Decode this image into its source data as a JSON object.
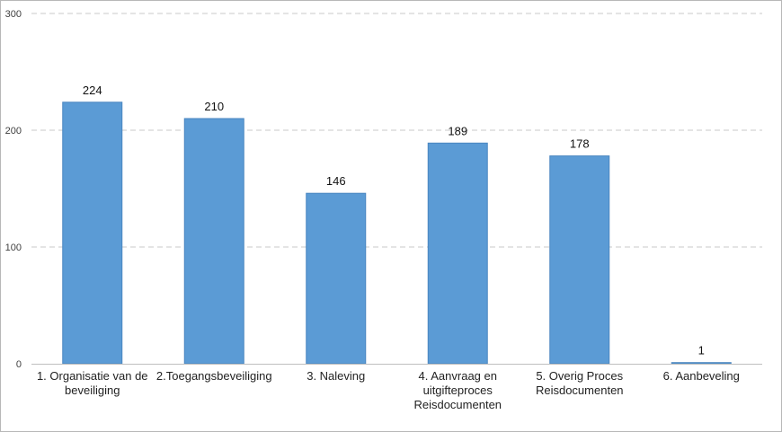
{
  "chart_data": {
    "type": "bar",
    "categories": [
      [
        "1. Organisatie van de",
        "beveiliging"
      ],
      [
        "2.Toegangsbeveiliging"
      ],
      [
        "3. Naleving"
      ],
      [
        "4. Aanvraag en",
        "uitgifteproces",
        "Reisdocumenten"
      ],
      [
        "5. Overig Proces",
        "Reisdocumenten"
      ],
      [
        "6. Aanbeveling"
      ]
    ],
    "values": [
      224,
      210,
      146,
      189,
      178,
      1
    ],
    "data_labels": [
      "224",
      "210",
      "146",
      "189",
      "178",
      "1"
    ],
    "yticks": [
      0,
      100,
      200,
      300
    ],
    "ytick_labels": [
      "0",
      "100",
      "200",
      "300"
    ],
    "ylim": [
      0,
      300
    ],
    "grid": true,
    "colors": {
      "bar": "#5b9bd5",
      "bar_edge": "#4a86c0",
      "grid": "#c8c8c8",
      "axis": "#bfbfbf"
    }
  }
}
